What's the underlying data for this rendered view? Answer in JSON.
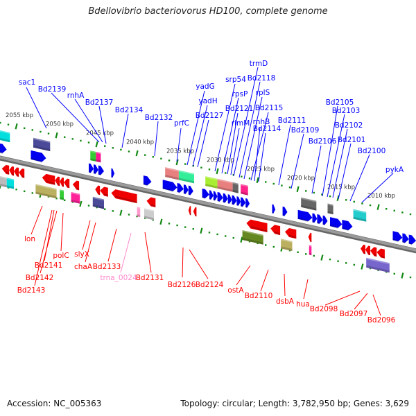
{
  "title": "Bdellovibrio bacteriovorus HD100, complete genome",
  "footer": {
    "accession": "Accession: NC_005363",
    "summary": "Topology: circular; Length: 3,782,950 bp; Genes: 3,629"
  },
  "colors": {
    "forward_label": "#0000ff",
    "reverse_label": "#ff0000",
    "trna_label": "#ff88cc",
    "forward_gene": "#0000ee",
    "reverse_gene": "#ee0000",
    "backbone": "#888888",
    "ticks": "#118811",
    "tick_label": "#333333"
  },
  "kbp_ticks": [
    "2055 kbp",
    "2050 kbp",
    "2045 kbp",
    "2040 kbp",
    "2035 kbp",
    "2030 kbp",
    "2025 kbp",
    "2020 kbp",
    "2015 kbp",
    "2010 kbp"
  ],
  "kbp_tick_values": [
    2055,
    2050,
    2045,
    2040,
    2035,
    2030,
    2025,
    2020,
    2015,
    2010
  ],
  "forward_labels": [
    "sac1",
    "Bd2139",
    "rnhA",
    "Bd2137",
    "Bd2134",
    "Bd2132",
    "prfC",
    "yadG",
    "yadH",
    "Bd2127",
    "srp54",
    "trmD",
    "Bd2118",
    "rpsP",
    "rplS",
    "Bd2121",
    "Bd2115",
    "rimM",
    "rnhB",
    "Bd2114",
    "Bd2111",
    "Bd2109",
    "Bd2106",
    "Bd2105",
    "Bd2103",
    "Bd2102",
    "Bd2101",
    "Bd2100",
    "pykA"
  ],
  "reverse_labels": [
    "lon",
    "Bd2141",
    "Bd2142",
    "Bd2143",
    "polC",
    "slyX",
    "chaA",
    "Bd2133",
    "trna_0024",
    "Bd2131",
    "Bd2126",
    "Bd2124",
    "ostA",
    "Bd2110",
    "dsbA",
    "hua",
    "Bd2098",
    "Bd2097",
    "Bd2096"
  ],
  "forward_genes": [
    [
      2056.5,
      2055.2
    ],
    [
      2052.2,
      2050.3
    ],
    [
      2045.0,
      2044.4
    ],
    [
      2044.4,
      2043.8
    ],
    [
      2043.8,
      2043.1
    ],
    [
      2042.2,
      2041.8
    ],
    [
      2038.2,
      2037.2
    ],
    [
      2035.8,
      2034.0
    ],
    [
      2034.0,
      2033.2
    ],
    [
      2033.2,
      2032.6
    ],
    [
      2032.6,
      2032.0
    ],
    [
      2030.9,
      2030.0
    ],
    [
      2030.0,
      2029.5
    ],
    [
      2029.5,
      2029.0
    ],
    [
      2029.0,
      2028.3
    ],
    [
      2028.3,
      2027.7
    ],
    [
      2027.7,
      2027.2
    ],
    [
      2027.2,
      2026.6
    ],
    [
      2026.6,
      2026.1
    ],
    [
      2026.1,
      2025.5
    ],
    [
      2025.5,
      2025.0
    ],
    [
      2022.2,
      2021.8
    ],
    [
      2020.9,
      2020.3
    ],
    [
      2019.0,
      2017.2
    ],
    [
      2017.2,
      2016.6
    ],
    [
      2016.6,
      2015.9
    ],
    [
      2015.9,
      2015.3
    ],
    [
      2015.0,
      2013.5
    ],
    [
      2013.5,
      2012.2
    ],
    [
      2007.2,
      2006.0
    ],
    [
      2006.0,
      2005.2
    ],
    [
      2005.2,
      2004.3
    ]
  ],
  "reverse_genes": [
    [
      2055.8,
      2054.9
    ],
    [
      2054.9,
      2054.3
    ],
    [
      2054.3,
      2053.7
    ],
    [
      2053.7,
      2053.0
    ],
    [
      2050.8,
      2049.2
    ],
    [
      2049.2,
      2048.6
    ],
    [
      2048.6,
      2048.1
    ],
    [
      2048.1,
      2047.4
    ],
    [
      2047.0,
      2046.2
    ],
    [
      2044.2,
      2043.6
    ],
    [
      2043.6,
      2042.6
    ],
    [
      2042.2,
      2039.0
    ],
    [
      2037.8,
      2036.7
    ],
    [
      2032.6,
      2032.3
    ],
    [
      2032.0,
      2031.6
    ],
    [
      2025.4,
      2022.8
    ],
    [
      2022.4,
      2021.2
    ],
    [
      2020.6,
      2019.2
    ],
    [
      2017.7,
      2017.3
    ],
    [
      2011.2,
      2010.6
    ],
    [
      2010.6,
      2010.0
    ],
    [
      2010.0,
      2009.2
    ],
    [
      2009.2,
      2008.2
    ]
  ],
  "forward_features": [
    {
      "range": [
        2056.6,
        2054.8
      ],
      "color": "#00dede"
    },
    {
      "range": [
        2051.9,
        2049.8
      ],
      "color": "#4a4a99"
    },
    {
      "range": [
        2044.8,
        2044.1
      ],
      "color": "#33cc33"
    },
    {
      "range": [
        2044.1,
        2043.5
      ],
      "color": "#ff1493"
    },
    {
      "range": [
        2035.5,
        2033.8
      ],
      "color": "#e88080"
    },
    {
      "range": [
        2033.8,
        2031.9
      ],
      "color": "#33ee99"
    },
    {
      "range": [
        2030.5,
        2029.0
      ],
      "color": "#aaee33"
    },
    {
      "range": [
        2029.0,
        2027.1
      ],
      "color": "#e88080"
    },
    {
      "range": [
        2027.1,
        2026.4
      ],
      "color": "#666666"
    },
    {
      "range": [
        2026.1,
        2025.2
      ],
      "color": "#ff2288"
    },
    {
      "range": [
        2018.6,
        2016.7
      ],
      "color": "#666666"
    },
    {
      "range": [
        2015.3,
        2014.6
      ],
      "color": "#666666"
    },
    {
      "range": [
        2012.1,
        2010.5
      ],
      "color": "#22cccc"
    }
  ],
  "reverse_features": [
    {
      "range": [
        2056.2,
        2055.2
      ],
      "color": "#bbbbbb"
    },
    {
      "range": [
        2055.2,
        2054.3
      ],
      "color": "#00dede"
    },
    {
      "range": [
        2051.6,
        2049.0
      ],
      "color": "#bbb060"
    },
    {
      "range": [
        2048.6,
        2048.1
      ],
      "color": "#33cc33"
    },
    {
      "range": [
        2047.2,
        2046.1
      ],
      "color": "#ff2299"
    },
    {
      "range": [
        2044.5,
        2043.1
      ],
      "color": "#4a4a99"
    },
    {
      "range": [
        2039.0,
        2038.6
      ],
      "color": "#ff99cc"
    },
    {
      "range": [
        2038.1,
        2036.9
      ],
      "color": "#cccccc"
    },
    {
      "range": [
        2025.9,
        2023.3
      ],
      "color": "#668822"
    },
    {
      "range": [
        2021.1,
        2019.7
      ],
      "color": "#bbb060"
    },
    {
      "range": [
        2017.6,
        2017.3
      ],
      "color": "#ff2299"
    },
    {
      "range": [
        2010.5,
        2007.6
      ],
      "color": "#7766cc"
    }
  ]
}
